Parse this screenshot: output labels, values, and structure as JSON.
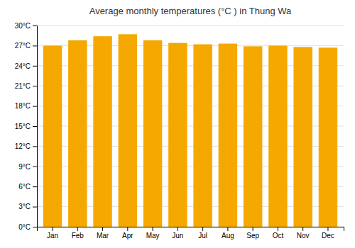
{
  "chart_data": {
    "type": "bar",
    "title": "Average monthly temperatures (°C ) in Thung Wa",
    "categories": [
      "Jan",
      "Feb",
      "Mar",
      "Apr",
      "May",
      "Jun",
      "Jul",
      "Aug",
      "Sep",
      "Oct",
      "Nov",
      "Dec"
    ],
    "values": [
      27.0,
      27.8,
      28.4,
      28.7,
      27.8,
      27.4,
      27.2,
      27.3,
      26.9,
      27.0,
      26.8,
      26.7
    ],
    "color": "#F5A800",
    "ylim": [
      0,
      30
    ],
    "yticks": [
      {
        "value": 0,
        "label": "0°C"
      },
      {
        "value": 3,
        "label": "3°C"
      },
      {
        "value": 6,
        "label": "6°C"
      },
      {
        "value": 9,
        "label": "9°C"
      },
      {
        "value": 12,
        "label": "12°C"
      },
      {
        "value": 15,
        "label": "15°C"
      },
      {
        "value": 18,
        "label": "18°C"
      },
      {
        "value": 21,
        "label": "21°C"
      },
      {
        "value": 24,
        "label": "24°C"
      },
      {
        "value": 27,
        "label": "27°C"
      },
      {
        "value": 30,
        "label": "30°C"
      }
    ],
    "grid": true
  }
}
